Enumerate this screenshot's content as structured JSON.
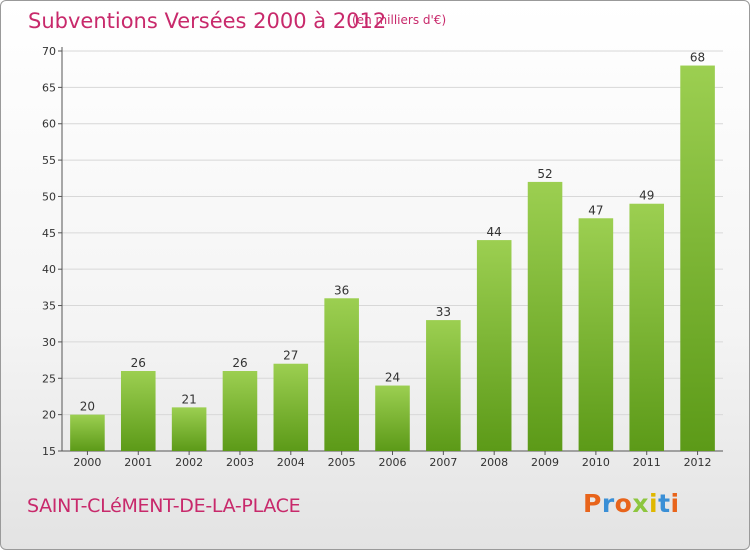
{
  "header": {
    "title": "Subventions Versées 2000 à 2012",
    "unit": "(en milliers d'€)"
  },
  "footer": {
    "commune": "SAINT-CLéMENT-DE-LA-PLACE",
    "logo_text": "Proxiti",
    "logo_colors": [
      "#e8641b",
      "#3a8fd6",
      "#e8641b",
      "#8dc63f",
      "#e0b800",
      "#3a8fd6",
      "#e8641b"
    ]
  },
  "colors": {
    "accent": "#c8296b",
    "bar_top": "#9ccf51",
    "bar_bottom": "#5c9a18",
    "grid": "#d8d8d8"
  },
  "chart_data": {
    "type": "bar",
    "title": "Subventions Versées 2000 à 2012",
    "subtitle": "(en milliers d'€)",
    "xlabel": "",
    "ylabel": "",
    "categories": [
      "2000",
      "2001",
      "2002",
      "2003",
      "2004",
      "2005",
      "2006",
      "2007",
      "2008",
      "2009",
      "2010",
      "2011",
      "2012"
    ],
    "values": [
      20,
      26,
      21,
      26,
      27,
      36,
      24,
      33,
      44,
      52,
      47,
      49,
      68
    ],
    "ylim": [
      15,
      70
    ],
    "yticks": [
      15,
      20,
      25,
      30,
      35,
      40,
      45,
      50,
      55,
      60,
      65,
      70
    ],
    "grid": true,
    "data_labels": true
  }
}
